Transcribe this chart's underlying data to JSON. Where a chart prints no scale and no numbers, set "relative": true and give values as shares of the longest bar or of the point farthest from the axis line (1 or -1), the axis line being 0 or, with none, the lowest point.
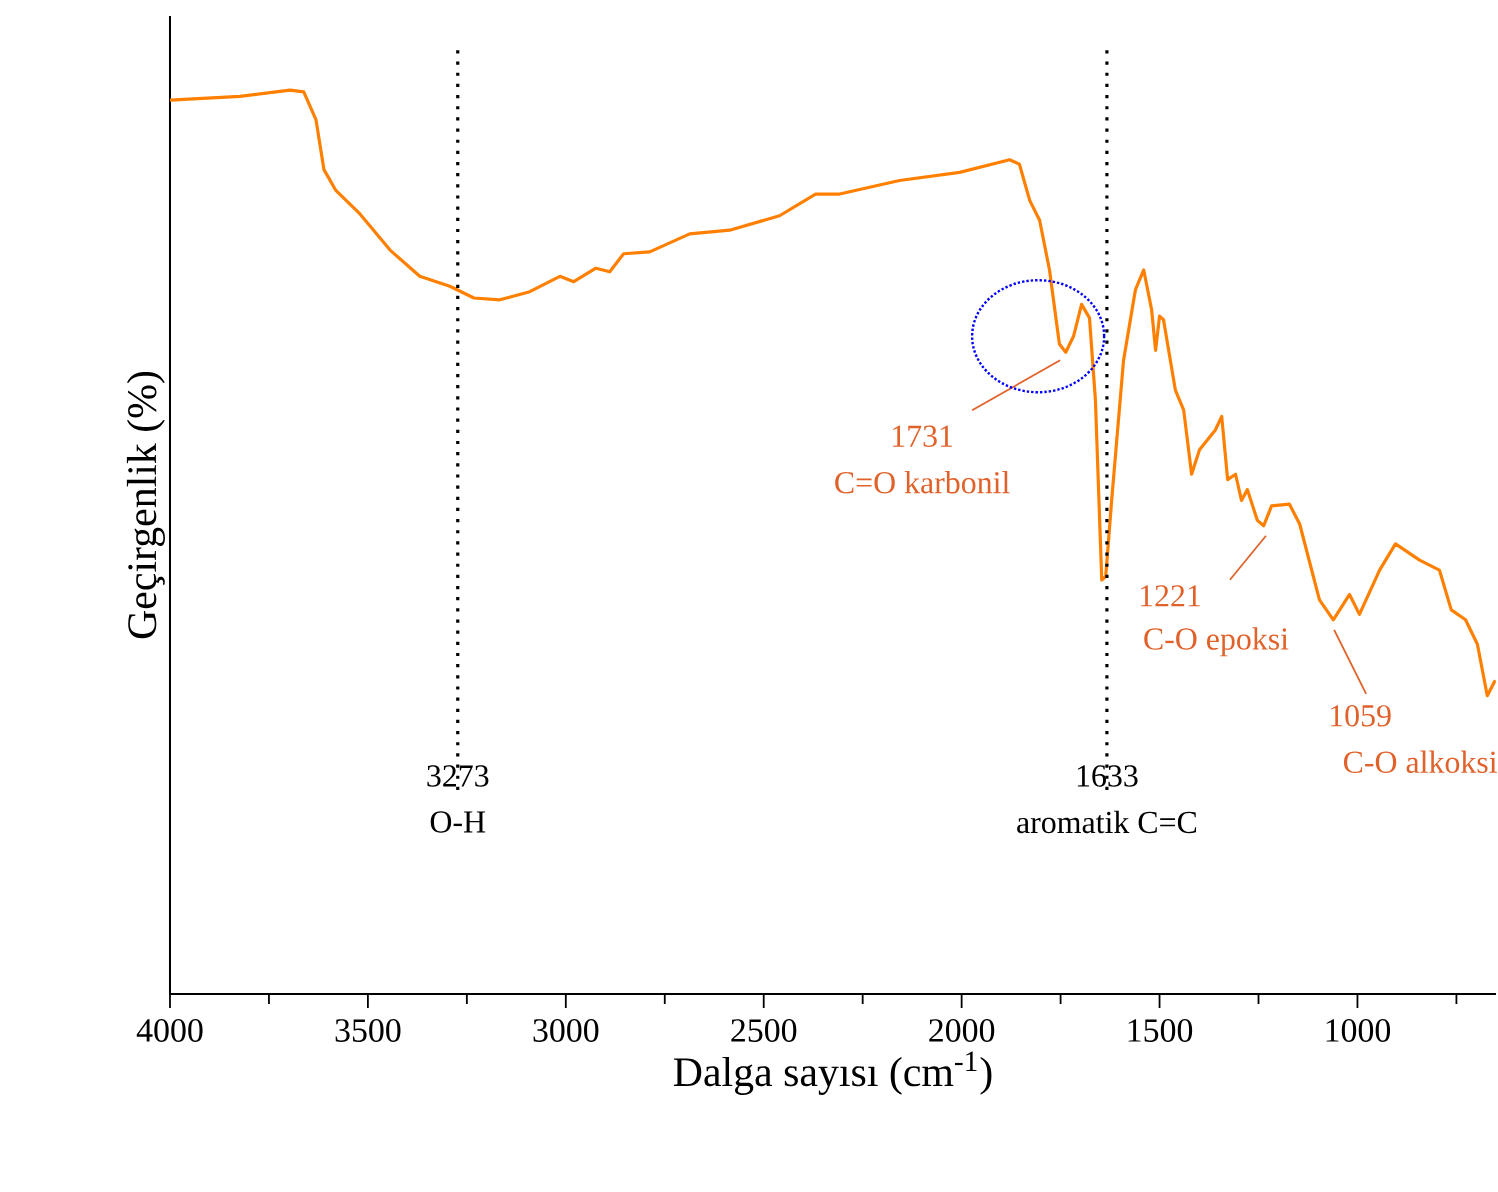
{
  "chart_data": {
    "type": "line",
    "xlabel": "Dalga sayısı (cm$^{-1}$)",
    "ylabel": "Geçirgenlik (%)",
    "relative": true,
    "color": "#ff8000",
    "marker": "none",
    "line_style": "solid",
    "grid": false,
    "xlim": [
      4000,
      650
    ],
    "xticks": [
      4000,
      {
        "value": 3750,
        "label": null
      },
      3500,
      {
        "value": 3250,
        "label": null
      },
      3000,
      {
        "value": 2750,
        "label": null
      },
      2500,
      {
        "value": 2250,
        "label": null
      },
      2000,
      {
        "value": 1750,
        "label": null
      },
      1500,
      {
        "value": 1250,
        "label": null
      },
      1000,
      {
        "value": 750,
        "label": null
      }
    ],
    "x": [
      4000,
      3823,
      3697,
      3662,
      3631,
      3611,
      3581,
      3520,
      3444,
      3369,
      3293,
      3232,
      3167,
      3091,
      3015,
      2980,
      2924,
      2889,
      2854,
      2788,
      2687,
      2586,
      2460,
      2369,
      2308,
      2157,
      2005,
      1879,
      1854,
      1828,
      1803,
      1778,
      1753,
      1737,
      1717,
      1697,
      1677,
      1662,
      1646,
      1636,
      1621,
      1591,
      1561,
      1540,
      1520,
      1510,
      1500,
      1490,
      1460,
      1439,
      1419,
      1399,
      1359,
      1343,
      1328,
      1308,
      1293,
      1278,
      1253,
      1237,
      1217,
      1172,
      1146,
      1096,
      1061,
      1020,
      995,
      944,
      904,
      843,
      793,
      763,
      727,
      697,
      672,
      652
    ],
    "values": [
      0.989,
      0.993,
      1.0,
      0.998,
      0.967,
      0.912,
      0.889,
      0.863,
      0.823,
      0.794,
      0.783,
      0.77,
      0.768,
      0.777,
      0.794,
      0.788,
      0.803,
      0.799,
      0.819,
      0.821,
      0.841,
      0.845,
      0.861,
      0.885,
      0.885,
      0.9,
      0.909,
      0.923,
      0.918,
      0.878,
      0.856,
      0.801,
      0.719,
      0.71,
      0.728,
      0.763,
      0.748,
      0.657,
      0.458,
      0.462,
      0.546,
      0.701,
      0.779,
      0.801,
      0.757,
      0.712,
      0.75,
      0.746,
      0.668,
      0.646,
      0.575,
      0.602,
      0.624,
      0.639,
      0.569,
      0.575,
      0.546,
      0.558,
      0.524,
      0.518,
      0.54,
      0.542,
      0.52,
      0.436,
      0.414,
      0.442,
      0.42,
      0.469,
      0.498,
      0.48,
      0.469,
      0.425,
      0.414,
      0.387,
      0.33,
      0.347
    ],
    "ref_lines": [
      {
        "axis": "x",
        "value": 3273,
        "label": "3273",
        "color": "#000000",
        "line_style": "dotted"
      },
      {
        "axis": "x",
        "value": 1633,
        "label": "1633",
        "color": "#000000",
        "line_style": "dotted"
      }
    ],
    "annotations": [
      "O-H",
      "aromatik C=C",
      {
        "text": "1731",
        "x": 1731,
        "y": 0.71
      },
      "C=O karbonil",
      {
        "text": "1221",
        "x": 1221,
        "y": 0.518
      },
      "C-O epoksi",
      {
        "text": "1059",
        "x": 1059,
        "y": 0.414
      },
      "C-O alkoksi"
    ]
  }
}
